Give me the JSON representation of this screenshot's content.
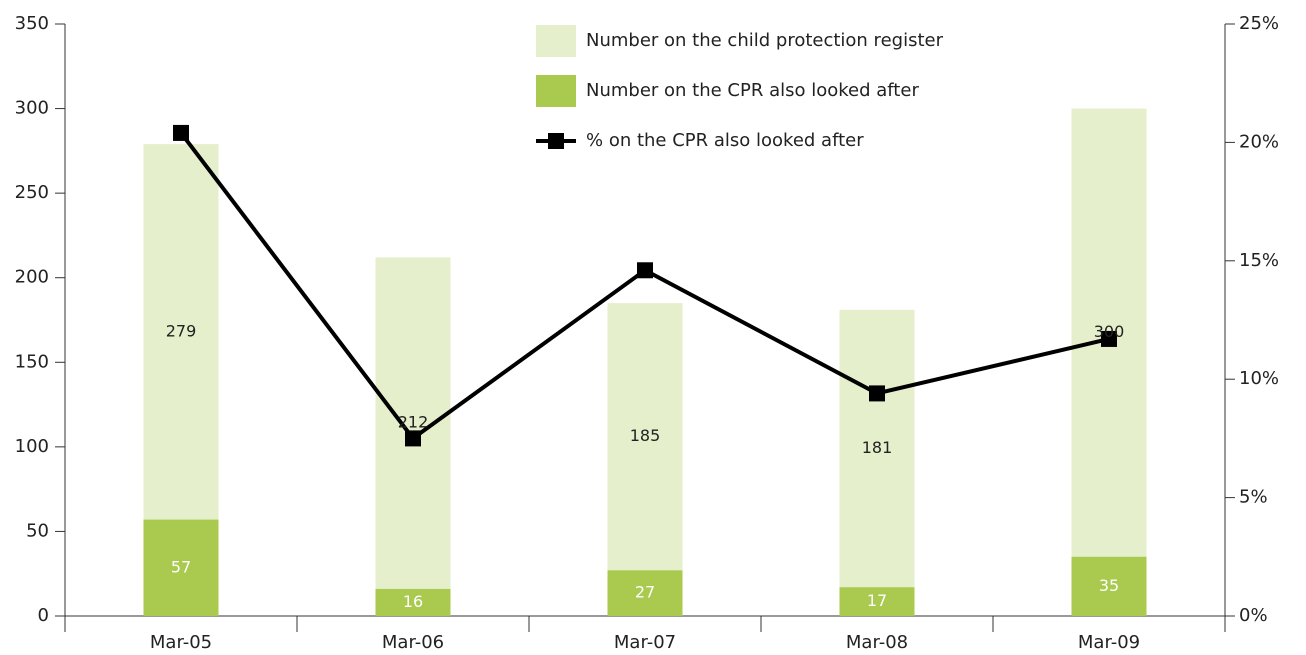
{
  "chart_data": {
    "type": "bar",
    "categories": [
      "Mar-05",
      "Mar-06",
      "Mar-07",
      "Mar-08",
      "Mar-09"
    ],
    "series": [
      {
        "name": "Number on the child protection register",
        "color": "#e5efcc",
        "values": [
          279,
          212,
          185,
          181,
          300
        ]
      },
      {
        "name": "Number on the CPR also looked after",
        "color": "#a9c94f",
        "values": [
          57,
          16,
          27,
          17,
          35
        ]
      },
      {
        "name": "% on the CPR also looked after",
        "type": "line",
        "axis": "y2",
        "color": "#000000",
        "values": [
          20.4,
          7.5,
          14.6,
          9.4,
          11.7
        ]
      }
    ],
    "ylim": [
      0,
      350
    ],
    "yticks": [
      0,
      50,
      100,
      150,
      200,
      250,
      300,
      350
    ],
    "y2lim": [
      0,
      25
    ],
    "y2ticks": [
      {
        "value": 0,
        "label": "0%"
      },
      {
        "value": 5,
        "label": "5%"
      },
      {
        "value": 10,
        "label": "10%"
      },
      {
        "value": 15,
        "label": "15%"
      },
      {
        "value": 20,
        "label": "20%"
      },
      {
        "value": 25,
        "label": "25%"
      }
    ],
    "legend": "top"
  }
}
